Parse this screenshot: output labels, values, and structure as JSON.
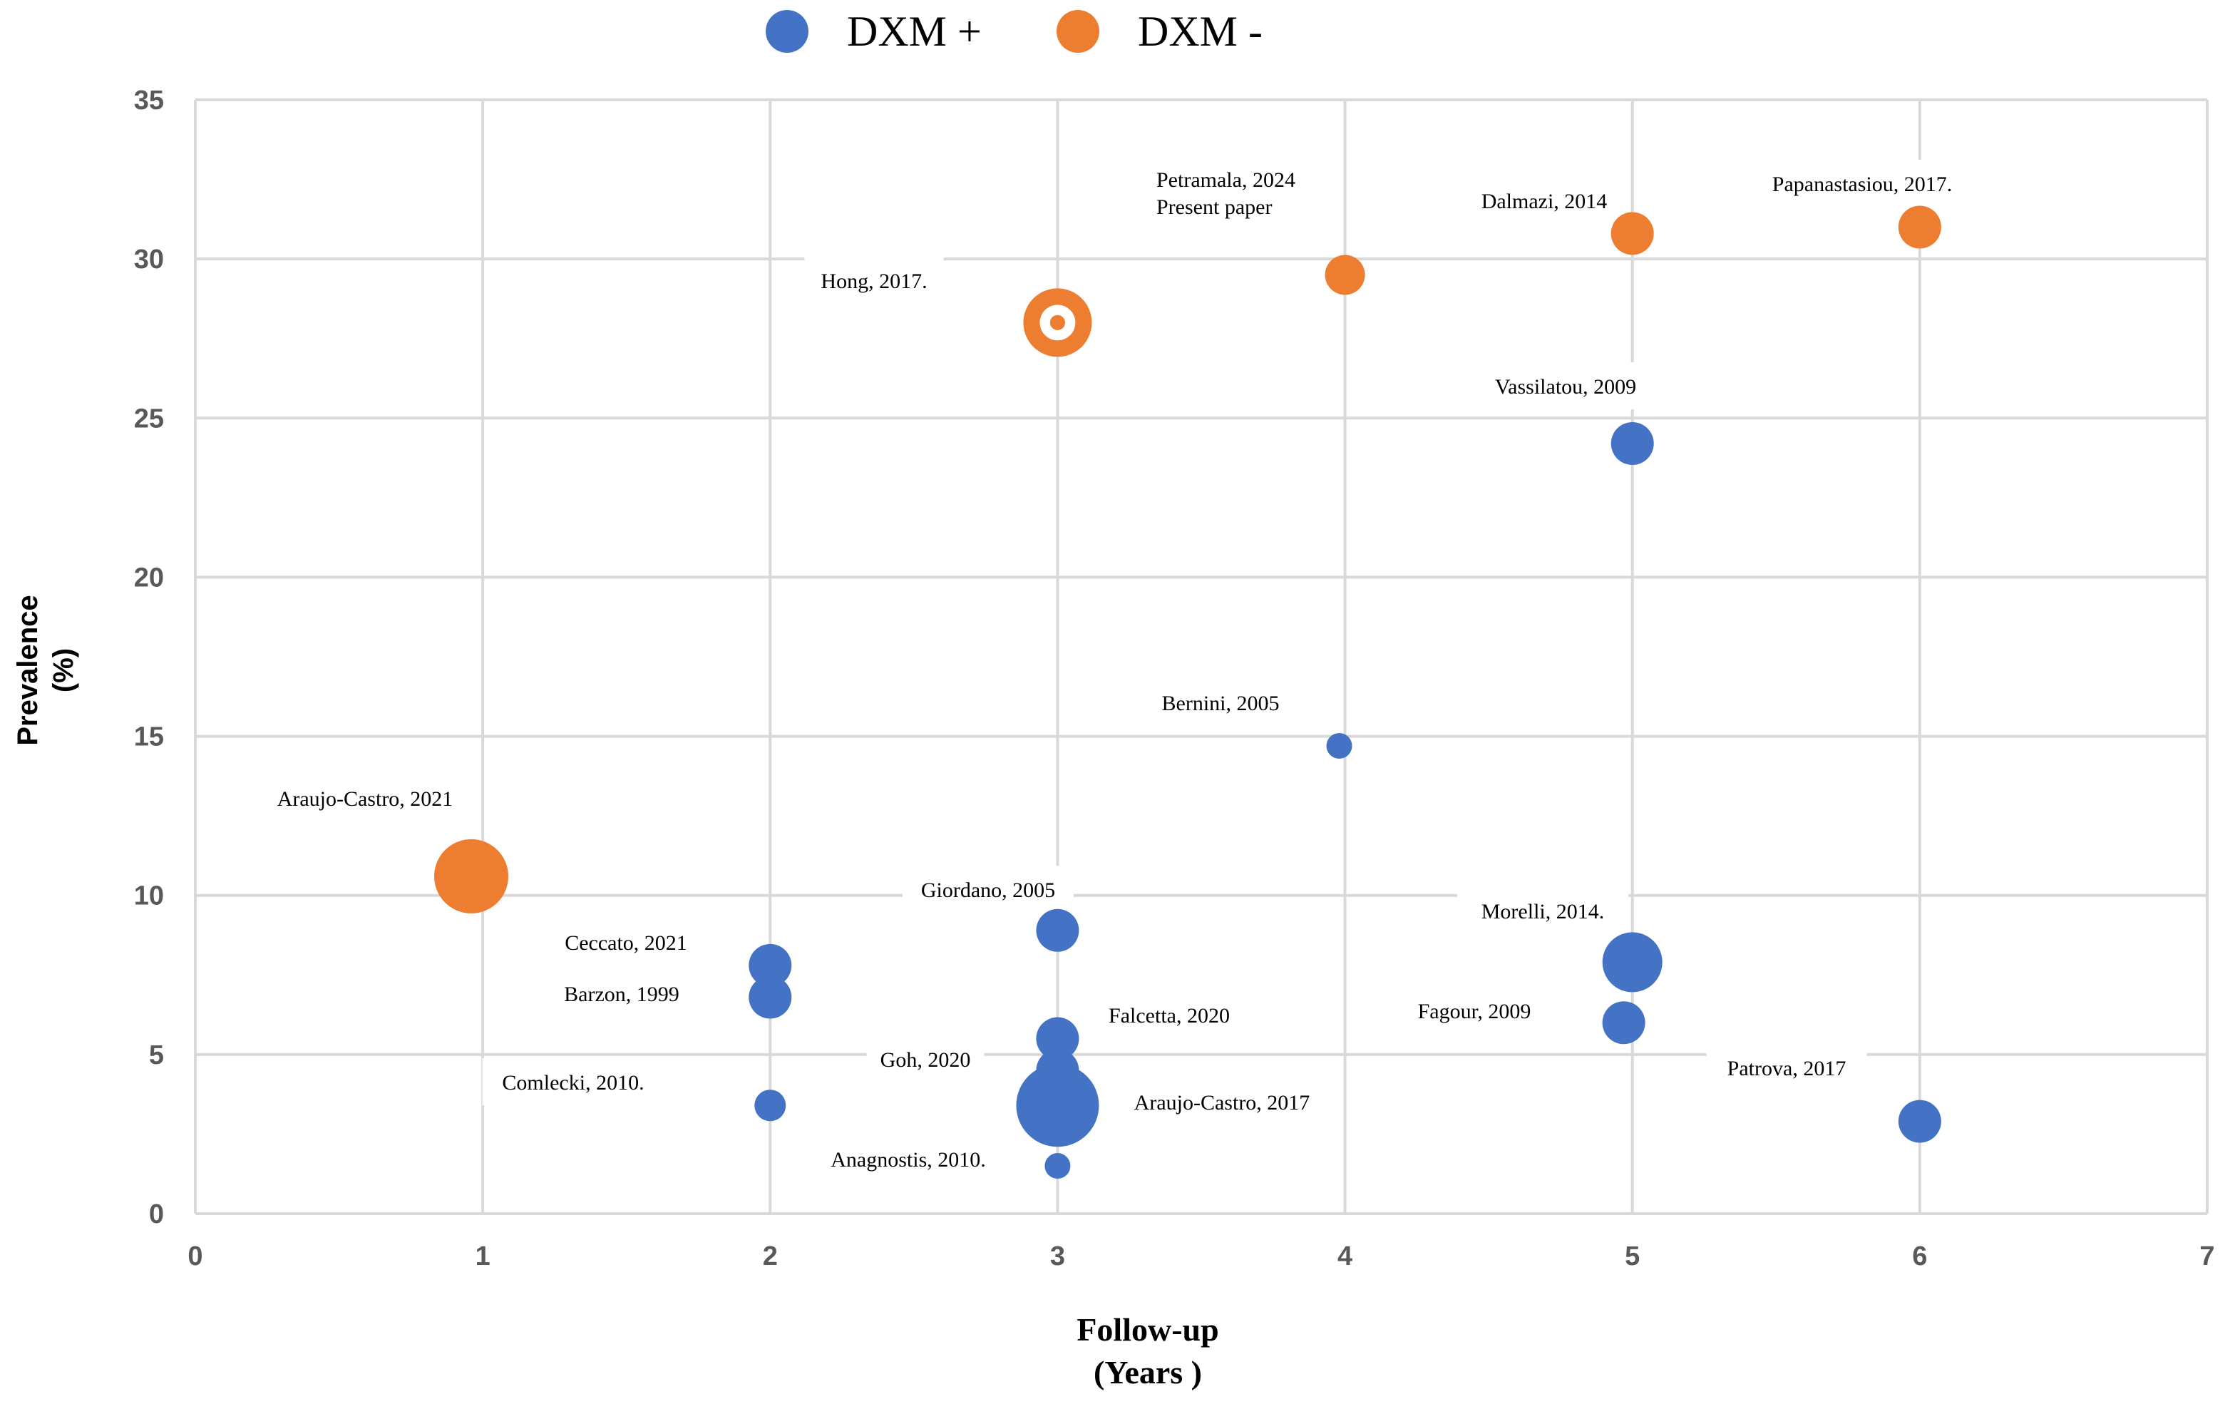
{
  "chart_data": {
    "type": "scatter",
    "title": "",
    "xlabel": [
      "Follow-up",
      "(Years )"
    ],
    "ylabel": [
      "Prevalence",
      "(%)"
    ],
    "xlim": [
      0,
      7
    ],
    "ylim": [
      0,
      35
    ],
    "x_ticks": [
      "0",
      "1",
      "2",
      "3",
      "4",
      "5",
      "6",
      "7"
    ],
    "y_ticks": [
      "0",
      "5",
      "10",
      "15",
      "20",
      "25",
      "30",
      "35"
    ],
    "grid": true,
    "legend": {
      "placement": "top-center",
      "entries": [
        {
          "name": "DXM +",
          "color": "#4472c4"
        },
        {
          "name": "DXM -",
          "color": "#ed7d31"
        }
      ]
    },
    "series": [
      {
        "name": "DXM +",
        "color": "#4472c4",
        "points": [
          {
            "label": "Vassilatou, 2009",
            "x": 5,
            "y": 24.2
          },
          {
            "label": "Bernini, 2005",
            "x": 3.98,
            "y": 14.7
          },
          {
            "label": "Giordano, 2005",
            "x": 3,
            "y": 8.9
          },
          {
            "label": "Morelli, 2014.",
            "x": 5,
            "y": 7.9
          },
          {
            "label": "Ceccato, 2021",
            "x": 2,
            "y": 7.8
          },
          {
            "label": "Barzon, 1999",
            "x": 2,
            "y": 6.8
          },
          {
            "label": "Fagour, 2009",
            "x": 4.97,
            "y": 6.0
          },
          {
            "label": "Falcetta, 2020",
            "x": 3,
            "y": 5.5
          },
          {
            "label": "Goh, 2020",
            "x": 3,
            "y": 4.5
          },
          {
            "label": "Araujo-Castro, 2017",
            "x": 3,
            "y": 3.4
          },
          {
            "label": "Comlecki, 2010.",
            "x": 2,
            "y": 3.4
          },
          {
            "label": "Patrova, 2017",
            "x": 6,
            "y": 2.9
          },
          {
            "label": "Anagnostis, 2010.",
            "x": 3,
            "y": 1.5
          }
        ]
      },
      {
        "name": "DXM -",
        "color": "#ed7d31",
        "points": [
          {
            "label": "Papanastasiou, 2017.",
            "x": 6,
            "y": 31
          },
          {
            "label": "Dalmazi, 2014",
            "x": 5,
            "y": 30.8
          },
          {
            "label": [
              "Petramala, 2024",
              "Present paper"
            ],
            "x": 4,
            "y": 29.5
          },
          {
            "label": "Hong, 2017.",
            "x": 3,
            "y": 28
          },
          {
            "label": "Araujo-Castro, 2021",
            "x": 0.96,
            "y": 10.6
          }
        ]
      }
    ]
  }
}
